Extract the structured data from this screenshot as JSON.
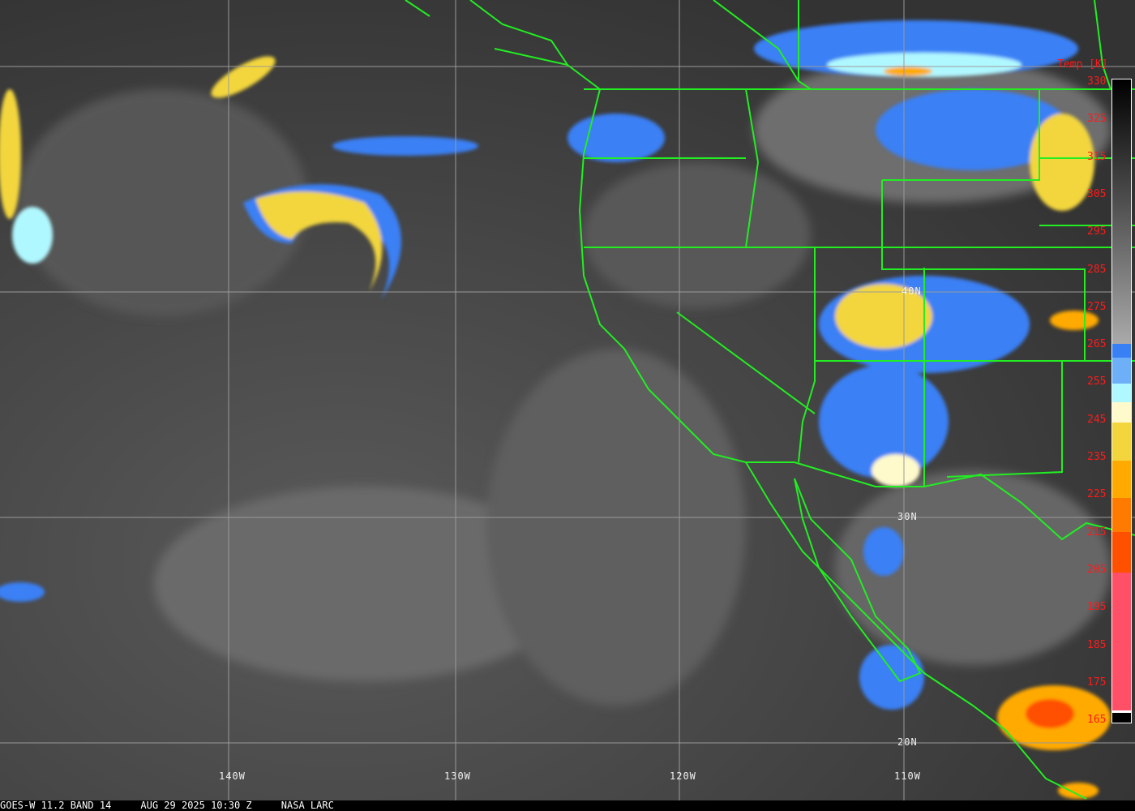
{
  "product": {
    "satellite": "GOES-W",
    "band": "11.2 BAND 14",
    "date": "AUG 29 2025",
    "time": "10:30 Z",
    "agency": "NASA LARC",
    "footer_text": "GOES-W 11.2 BAND 14     AUG 29 2025 10:30 Z     NASA LARC"
  },
  "colorbar": {
    "title": "Temp [K]",
    "labels": [
      "330",
      "325",
      "315",
      "305",
      "295",
      "285",
      "275",
      "265",
      "255",
      "245",
      "235",
      "225",
      "215",
      "205",
      "195",
      "185",
      "175",
      "165"
    ],
    "colors": {
      "cold_blue": "#3a80f5",
      "mid_blue": "#6eb0f8",
      "light_blue": "#b0f8ff",
      "pale_yellow": "#fffacc",
      "yellow": "#f3d63e",
      "orange": "#ffaa00",
      "dark_orange": "#ff7b00",
      "red_orange": "#ff5000",
      "pink": "#ff5068"
    }
  },
  "grid": {
    "longitudes": [
      "140W",
      "130W",
      "120W",
      "110W"
    ],
    "latitudes": [
      "40N",
      "30N",
      "20N"
    ]
  },
  "colors": {
    "borders": "#22ee22",
    "gridlines": "#9a9a9a",
    "label_text": "#ff1a1a"
  }
}
